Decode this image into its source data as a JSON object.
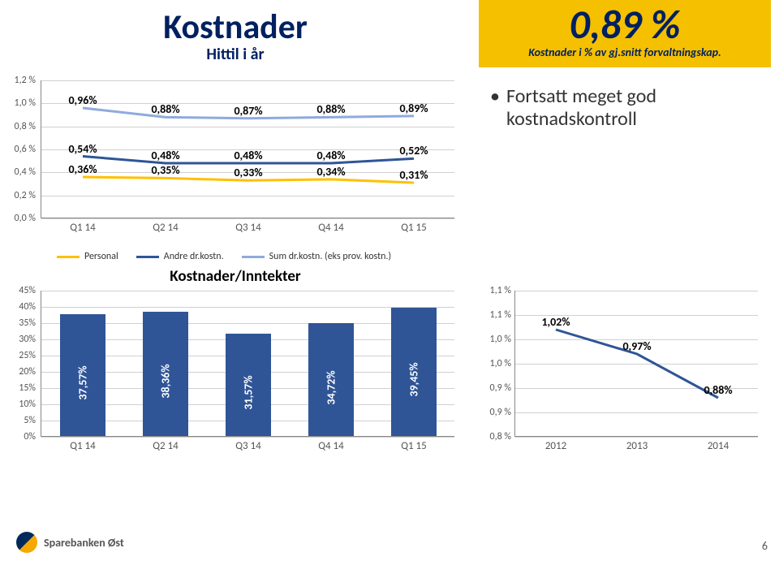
{
  "title": "Kostnader",
  "subtitle": "Hittil i år",
  "badge": {
    "big": "0,89 %",
    "sub": "Kostnader i % av gj.snitt forvaltningskap.",
    "bg": "#f5c000",
    "text_color": "#002060"
  },
  "bullet": "Fortsatt meget god kostnadskontroll",
  "chart1": {
    "type": "line",
    "ylim": [
      0.0,
      1.2
    ],
    "ytick_step": 0.2,
    "yticks": [
      "0,0 %",
      "0,2 %",
      "0,4 %",
      "0,6 %",
      "0,8 %",
      "1,0 %",
      "1,2 %"
    ],
    "categories": [
      "Q1 14",
      "Q2 14",
      "Q3 14",
      "Q4 14",
      "Q1 15"
    ],
    "series": [
      {
        "name": "Personal",
        "color": "#ffc000",
        "values": [
          0.36,
          0.35,
          0.33,
          0.34,
          0.31
        ],
        "labels": [
          "0,36%",
          "0,35%",
          "0,33%",
          "0,34%",
          "0,31%"
        ]
      },
      {
        "name": "Andre dr.kostn.",
        "color": "#2f5597",
        "values": [
          0.54,
          0.48,
          0.48,
          0.48,
          0.52
        ],
        "labels": [
          "0,54%",
          "0,48%",
          "0,48%",
          "0,48%",
          "0,52%"
        ]
      },
      {
        "name": "Sum dr.kostn. (eks prov. kostn.)",
        "color": "#8faadc",
        "values": [
          0.96,
          0.88,
          0.87,
          0.88,
          0.89
        ],
        "labels": [
          "0,96%",
          "0,88%",
          "0,87%",
          "0,88%",
          "0,89%"
        ]
      }
    ],
    "grid_color": "#d0d0d0",
    "label_fontsize": 14
  },
  "kostinn_title": "Kostnader/Inntekter",
  "chart2": {
    "type": "bar",
    "ylim": [
      0,
      45
    ],
    "ytick_step": 5,
    "yticks": [
      "0%",
      "5%",
      "10%",
      "15%",
      "20%",
      "25%",
      "30%",
      "35%",
      "40%",
      "45%"
    ],
    "categories": [
      "Q1 14",
      "Q2 14",
      "Q3 14",
      "Q4 14",
      "Q1 15"
    ],
    "values": [
      37.57,
      38.36,
      31.57,
      34.72,
      39.45
    ],
    "labels": [
      "37,57%",
      "38,36%",
      "31,57%",
      "34,72%",
      "39,45%"
    ],
    "bar_color": "#2f5597",
    "grid_color": "#d0d0d0",
    "bar_width": 0.55
  },
  "chart3": {
    "type": "line",
    "ylim": [
      0.8,
      1.1
    ],
    "yticks_vals": [
      0.8,
      0.85,
      0.9,
      0.95,
      1.0,
      1.05,
      1.1
    ],
    "yticks": [
      "0,8 %",
      "0,9 %",
      "0,9 %",
      "1,0 %",
      "1,0 %",
      "1,1 %",
      "1,1 %"
    ],
    "categories": [
      "2012",
      "2013",
      "2014"
    ],
    "values": [
      1.02,
      0.97,
      0.88
    ],
    "labels": [
      "1,02%",
      "0,97%",
      "0,88%"
    ],
    "line_color": "#2f5597",
    "grid_color": "#d0d0d0"
  },
  "footer_logo_text": "Sparebanken Øst",
  "page_number": "6"
}
